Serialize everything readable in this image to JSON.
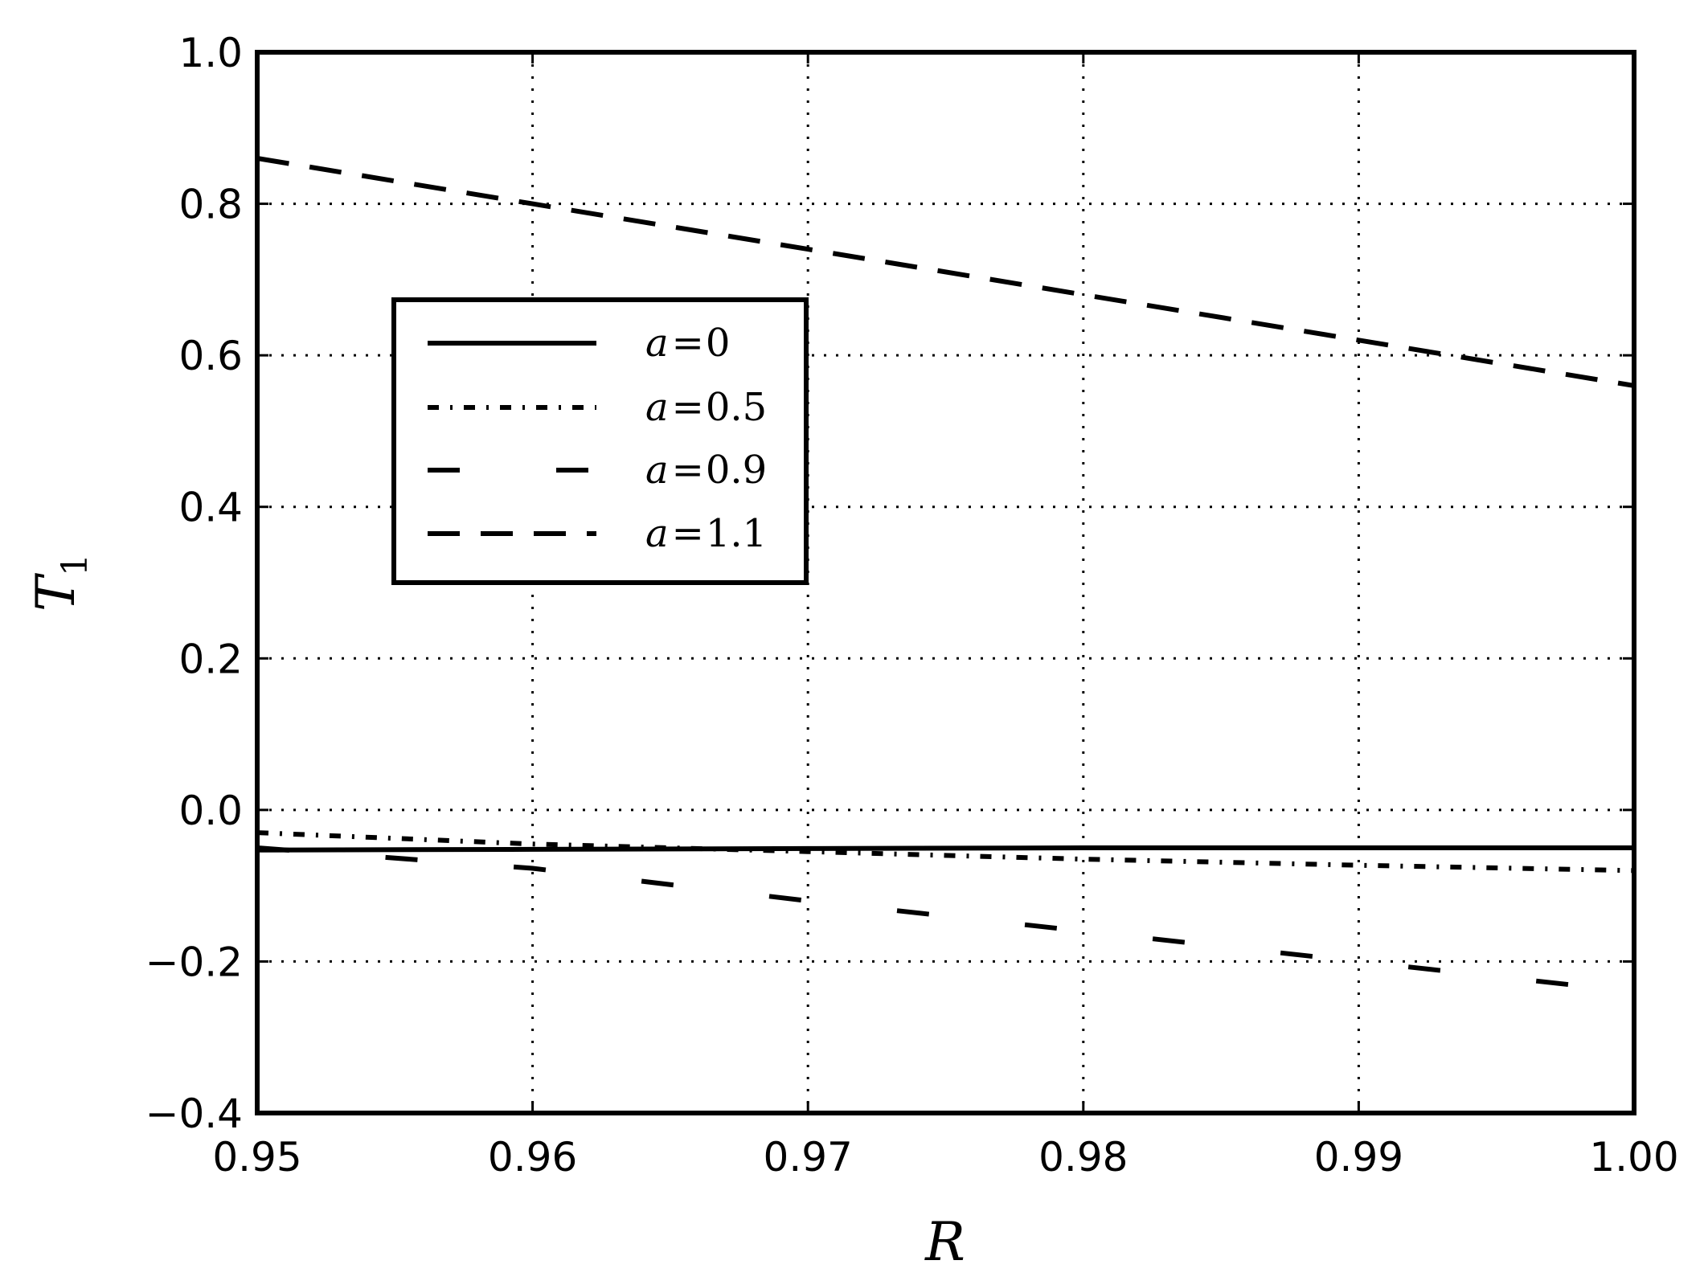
{
  "chart_data": {
    "type": "line",
    "xlabel": "R",
    "ylabel": "T",
    "ylabel_sub": "1",
    "xlim": [
      0.95,
      1.0
    ],
    "ylim": [
      -0.4,
      1.0
    ],
    "xticks": [
      0.95,
      0.96,
      0.97,
      0.98,
      0.99,
      1.0
    ],
    "xtick_labels": [
      "0.95",
      "0.96",
      "0.97",
      "0.98",
      "0.99",
      "1.00"
    ],
    "yticks": [
      -0.4,
      -0.2,
      0.0,
      0.2,
      0.4,
      0.6,
      0.8,
      1.0
    ],
    "ytick_labels": [
      "−0.4",
      "−0.2",
      "0.0",
      "0.2",
      "0.4",
      "0.6",
      "0.8",
      "1.0"
    ],
    "grid": true,
    "legend_position": "upper-left",
    "series": [
      {
        "name": "a=0",
        "var": "a",
        "eq": "=",
        "num": "0",
        "style": "solid",
        "x": [
          0.95,
          0.96,
          0.97,
          0.98,
          0.99,
          1.0
        ],
        "y": [
          -0.053,
          -0.052,
          -0.051,
          -0.05,
          -0.05,
          -0.05
        ]
      },
      {
        "name": "a=0.5",
        "var": "a",
        "eq": "=",
        "num": "0.5",
        "style": "dashdot",
        "x": [
          0.95,
          0.96,
          0.97,
          0.98,
          0.99,
          1.0
        ],
        "y": [
          -0.03,
          -0.045,
          -0.055,
          -0.065,
          -0.073,
          -0.08
        ]
      },
      {
        "name": "a=0.9",
        "var": "a",
        "eq": "=",
        "num": "0.9",
        "style": "longdash",
        "x": [
          0.95,
          0.96,
          0.97,
          0.98,
          0.99,
          1.0
        ],
        "y": [
          -0.05,
          -0.077,
          -0.12,
          -0.16,
          -0.2,
          -0.24
        ]
      },
      {
        "name": "a=1.1",
        "var": "a",
        "eq": "=",
        "num": "1.1",
        "style": "dashed",
        "x": [
          0.95,
          0.96,
          0.97,
          0.98,
          0.99,
          1.0
        ],
        "y": [
          0.86,
          0.8,
          0.74,
          0.68,
          0.62,
          0.56
        ]
      }
    ]
  }
}
